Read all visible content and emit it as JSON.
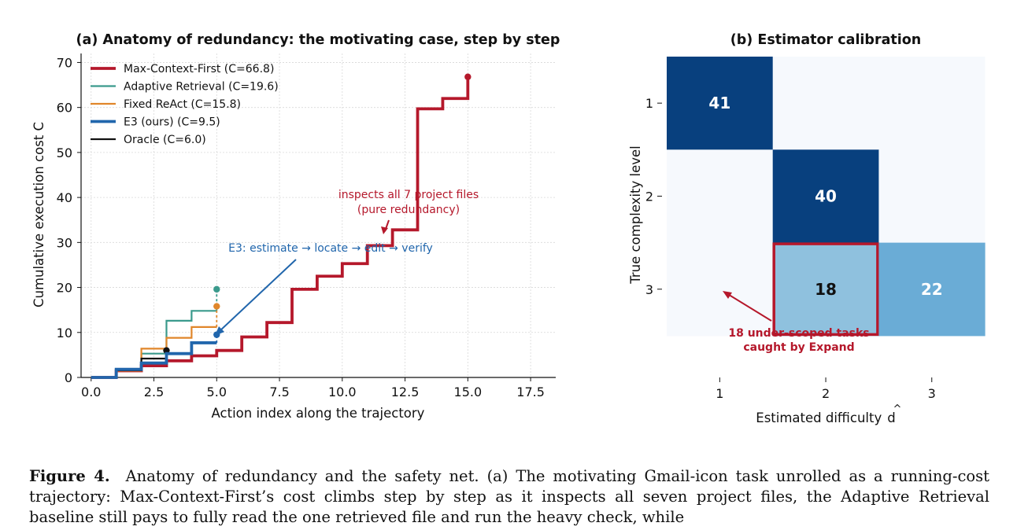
{
  "panel_a": {
    "title": "(a) Anatomy of redundancy: the motivating case, step by step",
    "xlabel": "Action index along the trajectory",
    "ylabel": "Cumulative execution cost  C",
    "annotation_red": [
      "inspects all 7 project files",
      "(pure redundancy)"
    ],
    "annotation_blue": "E3: estimate → locate → edit → verify",
    "colors": {
      "max_context": "#b5182b",
      "adaptive": "#3a9a8c",
      "fixed": "#e0862a",
      "e3": "#2166ac",
      "oracle": "#111111"
    }
  },
  "panel_b": {
    "title": "(b) Estimator calibration",
    "xlabel": "Estimated difficulty",
    "xlabel_symbol": "d",
    "ylabel": "True complexity level",
    "annotation": [
      "18 under-scoped tasks",
      "caught by Expand"
    ],
    "colors": {
      "dark": "#08407e",
      "mid": "#6aacd6",
      "light": "#8fc1de",
      "empty": "#f6f9fd",
      "highlight": "#b5182b"
    }
  },
  "chart_data": [
    {
      "type": "line",
      "title": "(a) Anatomy of redundancy: the motivating case, step by step",
      "xlabel": "Action index along the trajectory",
      "ylabel": "Cumulative execution cost  C",
      "xlim": [
        -0.4,
        18.5
      ],
      "ylim": [
        0,
        72
      ],
      "xticks": [
        "0.0",
        "2.5",
        "5.0",
        "7.5",
        "10.0",
        "12.5",
        "15.0",
        "17.5"
      ],
      "yticks": [
        "0",
        "10",
        "20",
        "30",
        "40",
        "50",
        "60",
        "70"
      ],
      "grid": true,
      "legend_position": "top-left",
      "series": [
        {
          "name": "Max-Context-First  (C=66.8)",
          "x": [
            0,
            1,
            2,
            3,
            4,
            5,
            6,
            7,
            8,
            9,
            10,
            11,
            12,
            13,
            14,
            15
          ],
          "y": [
            0,
            1.5,
            2.6,
            3.7,
            4.8,
            6.0,
            9.0,
            12.2,
            19.6,
            22.5,
            25.3,
            29.3,
            32.8,
            59.7,
            62.0,
            66.8
          ]
        },
        {
          "name": "Adaptive Retrieval  (C=19.6)",
          "x": [
            0,
            1,
            2,
            3,
            4,
            5
          ],
          "y": [
            0,
            1.5,
            5.3,
            12.6,
            14.8,
            19.6
          ]
        },
        {
          "name": "Fixed ReAct  (C=15.8)",
          "x": [
            0,
            1,
            2,
            3,
            4,
            5
          ],
          "y": [
            0,
            1.5,
            6.4,
            8.8,
            11.2,
            15.8
          ]
        },
        {
          "name": "E3 (ours)  (C=9.5)",
          "x": [
            0,
            1,
            2,
            3,
            4,
            5
          ],
          "y": [
            0,
            1.8,
            3.2,
            5.3,
            7.7,
            9.5
          ]
        },
        {
          "name": "Oracle  (C=6.0)",
          "x": [
            0,
            1,
            2,
            3
          ],
          "y": [
            0,
            1.6,
            4.2,
            6.0
          ]
        }
      ]
    },
    {
      "type": "heatmap",
      "title": "(b) Estimator calibration",
      "xlabel": "Estimated difficulty  d̂",
      "ylabel": "True complexity level",
      "x_categories": [
        "1",
        "2",
        "3"
      ],
      "y_categories": [
        "1",
        "2",
        "3"
      ],
      "cells": [
        {
          "row": "1",
          "col": "1",
          "value": 41
        },
        {
          "row": "2",
          "col": "2",
          "value": 40
        },
        {
          "row": "3",
          "col": "2",
          "value": 18,
          "highlight": true
        },
        {
          "row": "3",
          "col": "3",
          "value": 22
        }
      ]
    }
  ],
  "caption": {
    "label": "Figure 4.",
    "text": "Anatomy of redundancy and the safety net. (a) The motivating Gmail-icon task unrolled as a running-cost trajectory: Max-Context-First’s cost climbs step by step as it inspects all seven project files, the Adaptive Retrieval baseline still pays to fully read the one retrieved file and run the heavy check, while"
  }
}
